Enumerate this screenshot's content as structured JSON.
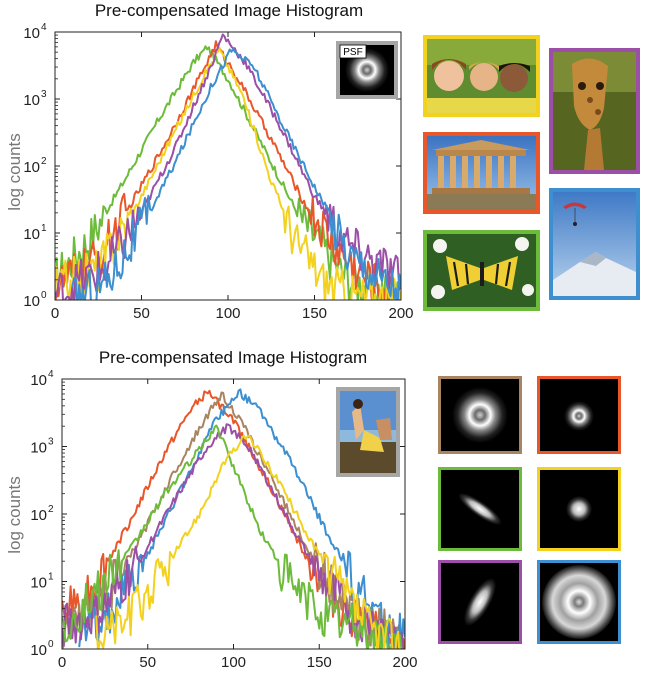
{
  "chart_data": [
    {
      "type": "line",
      "title": "Pre-compensated Image Histogram",
      "ylabel": "log counts",
      "xlabel": "",
      "xlim": [
        0,
        200
      ],
      "ylim": [
        1,
        10000
      ],
      "y_scale": "log",
      "x_ticks": [
        "0",
        "50",
        "100",
        "150",
        "200"
      ],
      "y_ticks": [
        {
          "base": "10",
          "exp": "0",
          "value": 1
        },
        {
          "base": "10",
          "exp": "1",
          "value": 10
        },
        {
          "base": "10",
          "exp": "2",
          "value": 100
        },
        {
          "base": "10",
          "exp": "3",
          "value": 1000
        },
        {
          "base": "10",
          "exp": "4",
          "value": 10000
        }
      ],
      "inset_label": "PSF",
      "series": [
        {
          "color": "#6dbb3b",
          "x": [
            0,
            20,
            40,
            60,
            80,
            88,
            100,
            120,
            140,
            160,
            170,
            185,
            200
          ],
          "y": [
            2,
            8,
            60,
            500,
            3500,
            6000,
            2000,
            200,
            20,
            4,
            2,
            1.5,
            1
          ]
        },
        {
          "color": "#e8572a",
          "x": [
            0,
            25,
            45,
            65,
            85,
            93,
            105,
            125,
            145,
            165,
            180,
            200
          ],
          "y": [
            1.5,
            4,
            30,
            250,
            2500,
            6500,
            2200,
            250,
            25,
            5,
            2,
            1
          ]
        },
        {
          "color": "#f2d21e",
          "x": [
            0,
            25,
            45,
            65,
            85,
            95,
            108,
            125,
            140,
            155,
            170,
            200
          ],
          "y": [
            1.5,
            3,
            20,
            200,
            2000,
            5500,
            1200,
            60,
            7,
            2,
            1.2,
            1
          ]
        },
        {
          "color": "#9b4fa6",
          "x": [
            0,
            30,
            50,
            70,
            90,
            97,
            110,
            130,
            150,
            170,
            190,
            200
          ],
          "y": [
            1.2,
            3,
            20,
            200,
            3000,
            9000,
            3500,
            400,
            35,
            6,
            3,
            2
          ]
        },
        {
          "color": "#3d8fcf",
          "x": [
            10,
            30,
            50,
            70,
            90,
            102,
            115,
            130,
            150,
            170,
            190,
            200
          ],
          "y": [
            1,
            2,
            12,
            120,
            1500,
            5500,
            3000,
            500,
            50,
            5,
            2,
            1.5
          ]
        }
      ]
    },
    {
      "type": "line",
      "title": "Pre-compensated Image Histogram",
      "ylabel": "log counts",
      "xlabel": "",
      "xlim": [
        0,
        200
      ],
      "ylim": [
        1,
        10000
      ],
      "y_scale": "log",
      "x_ticks": [
        "0",
        "50",
        "100",
        "150",
        "200"
      ],
      "y_ticks": [
        {
          "base": "10",
          "exp": "0",
          "value": 1
        },
        {
          "base": "10",
          "exp": "1",
          "value": 10
        },
        {
          "base": "10",
          "exp": "2",
          "value": 100
        },
        {
          "base": "10",
          "exp": "3",
          "value": 1000
        },
        {
          "base": "10",
          "exp": "4",
          "value": 10000
        }
      ],
      "series": [
        {
          "color": "#e8572a",
          "x": [
            0,
            20,
            40,
            60,
            75,
            85,
            100,
            120,
            140,
            160,
            180,
            200
          ],
          "y": [
            3,
            10,
            80,
            800,
            3500,
            6500,
            2500,
            300,
            30,
            5,
            2,
            1
          ]
        },
        {
          "color": "#a88560",
          "x": [
            0,
            25,
            45,
            65,
            85,
            93,
            105,
            125,
            145,
            165,
            185,
            200
          ],
          "y": [
            2,
            6,
            40,
            400,
            3000,
            6000,
            2200,
            250,
            25,
            4,
            2,
            1
          ]
        },
        {
          "color": "#3d8fcf",
          "x": [
            10,
            30,
            50,
            70,
            90,
            103,
            115,
            135,
            155,
            175,
            190,
            200
          ],
          "y": [
            1.5,
            4,
            25,
            250,
            2500,
            6500,
            3500,
            500,
            50,
            6,
            2,
            1.5
          ]
        },
        {
          "color": "#9b4fa6",
          "x": [
            0,
            25,
            45,
            65,
            85,
            97,
            110,
            130,
            150,
            170,
            190,
            200
          ],
          "y": [
            2,
            4,
            20,
            150,
            1000,
            2000,
            900,
            100,
            12,
            3,
            2,
            1
          ]
        },
        {
          "color": "#6dbb3b",
          "x": [
            0,
            20,
            40,
            60,
            80,
            90,
            100,
            115,
            135,
            155,
            175,
            200
          ],
          "y": [
            2,
            6,
            30,
            200,
            900,
            2000,
            500,
            60,
            8,
            3,
            2,
            1
          ]
        },
        {
          "color": "#f2d21e",
          "x": [
            20,
            40,
            60,
            80,
            95,
            108,
            125,
            145,
            165,
            180,
            200
          ],
          "y": [
            1.5,
            3,
            15,
            100,
            600,
            1500,
            350,
            40,
            6,
            2,
            1
          ]
        }
      ]
    }
  ],
  "thumbnails_top": [
    {
      "name": "children-photo",
      "border": "#f2d21e"
    },
    {
      "name": "giraffe-photo",
      "border": "#9b4fa6"
    },
    {
      "name": "parthenon-photo",
      "border": "#e8572a"
    },
    {
      "name": "paraglider-photo",
      "border": "#3d8fcf"
    },
    {
      "name": "butterfly-photo",
      "border": "#6dbb3b"
    }
  ],
  "psf_grid": [
    {
      "name": "psf-large-ring",
      "border": "#a88560"
    },
    {
      "name": "psf-small-disc",
      "border": "#e8572a"
    },
    {
      "name": "psf-diagonal-blur",
      "border": "#6dbb3b"
    },
    {
      "name": "psf-tiny-disc",
      "border": "#f2d21e"
    },
    {
      "name": "psf-tilted-blur",
      "border": "#9b4fa6"
    },
    {
      "name": "psf-wide-ring",
      "border": "#3d8fcf"
    }
  ]
}
